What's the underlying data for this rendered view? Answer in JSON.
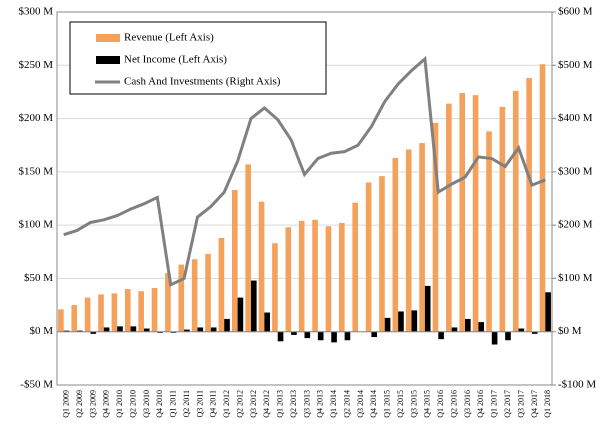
{
  "chart_data": {
    "type": "bar",
    "categories": [
      "Q1 2009",
      "Q2 2009",
      "Q3 2009",
      "Q4 2009",
      "Q1 2010",
      "Q2 2010",
      "Q3 2010",
      "Q4 2010",
      "Q1 2011",
      "Q2 2011",
      "Q3 2011",
      "Q4 2011",
      "Q1 2012",
      "Q2 2012",
      "Q3 2012",
      "Q4 2012",
      "Q1 2013",
      "Q2 2013",
      "Q3 2013",
      "Q4 2013",
      "Q1 2014",
      "Q2 2014",
      "Q3 2014",
      "Q4 2014",
      "Q1 2015",
      "Q2 2015",
      "Q3 2015",
      "Q4 2015",
      "Q1 2016",
      "Q2 2016",
      "Q3 2016",
      "Q4 2016",
      "Q1 2017",
      "Q2 2017",
      "Q3 2017",
      "Q4 2017",
      "Q1 2018"
    ],
    "series": [
      {
        "name": "Revenue (Left Axis)",
        "color": "#f4a15c",
        "type": "bar",
        "values": [
          21,
          25,
          32,
          35,
          36,
          40,
          38,
          41,
          55,
          63,
          68,
          73,
          88,
          133,
          157,
          122,
          83,
          98,
          104,
          105,
          99,
          102,
          121,
          140,
          146,
          163,
          171,
          177,
          196,
          214,
          224,
          222,
          188,
          211,
          226,
          238,
          251
        ]
      },
      {
        "name": "Net Income (Left Axis)",
        "color": "#000000",
        "type": "bar",
        "values": [
          1,
          1,
          -2,
          4,
          5,
          5,
          3,
          -1,
          -1,
          2,
          4,
          4,
          12,
          32,
          48,
          18,
          -9,
          -3,
          -6,
          -8,
          -10,
          -8,
          0,
          -5,
          13,
          19,
          20,
          43,
          -7,
          4,
          12,
          9,
          -12,
          -8,
          3,
          -2,
          37
        ]
      },
      {
        "name": "Cash And Investments (Right Axis)",
        "color": "#808080",
        "type": "line",
        "axis": "y2",
        "values": [
          182,
          190,
          205,
          210,
          218,
          230,
          240,
          252,
          88,
          100,
          215,
          235,
          262,
          320,
          400,
          420,
          398,
          360,
          295,
          325,
          335,
          338,
          350,
          385,
          432,
          465,
          490,
          512,
          262,
          277,
          290,
          328,
          325,
          310,
          345,
          275,
          285
        ]
      }
    ],
    "ylim": [
      -50,
      300
    ],
    "yticks": [
      {
        "value": -50,
        "label": "-$50 M"
      },
      {
        "value": 0,
        "label": "$0 M"
      },
      {
        "value": 50,
        "label": "$50 M"
      },
      {
        "value": 100,
        "label": "$100 M"
      },
      {
        "value": 150,
        "label": "$150 M"
      },
      {
        "value": 200,
        "label": "$200 M"
      },
      {
        "value": 250,
        "label": "$250 M"
      },
      {
        "value": 300,
        "label": "$300 M"
      }
    ],
    "y2lim": [
      -100,
      600
    ],
    "y2ticks": [
      {
        "value": -100,
        "label": "-$100 M"
      },
      {
        "value": 0,
        "label": "$0 M"
      },
      {
        "value": 100,
        "label": "$100 M"
      },
      {
        "value": 200,
        "label": "$200 M"
      },
      {
        "value": 300,
        "label": "$300 M"
      },
      {
        "value": 400,
        "label": "$400 M"
      },
      {
        "value": 500,
        "label": "$500 M"
      },
      {
        "value": 600,
        "label": "$600 M"
      }
    ],
    "grid": true
  }
}
